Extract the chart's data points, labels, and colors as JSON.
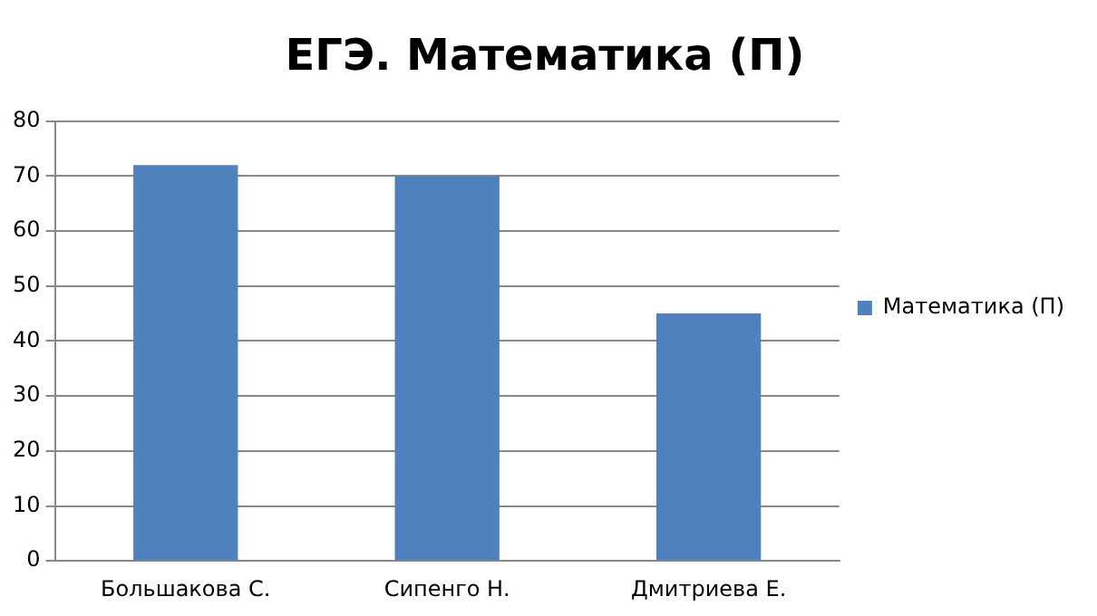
{
  "chart_data": {
    "type": "bar",
    "title": "ЕГЭ. Математика (П)",
    "categories": [
      "Большакова С.",
      "Сипенго Н.",
      "Дмитриева Е."
    ],
    "series": [
      {
        "name": "Математика (П)",
        "color": "#4f81bd",
        "values": [
          72,
          70,
          45
        ]
      }
    ],
    "ylim": [
      0,
      80
    ],
    "yticks": [
      0,
      10,
      20,
      30,
      40,
      50,
      60,
      70,
      80
    ],
    "grid": "y",
    "legend": "right"
  }
}
